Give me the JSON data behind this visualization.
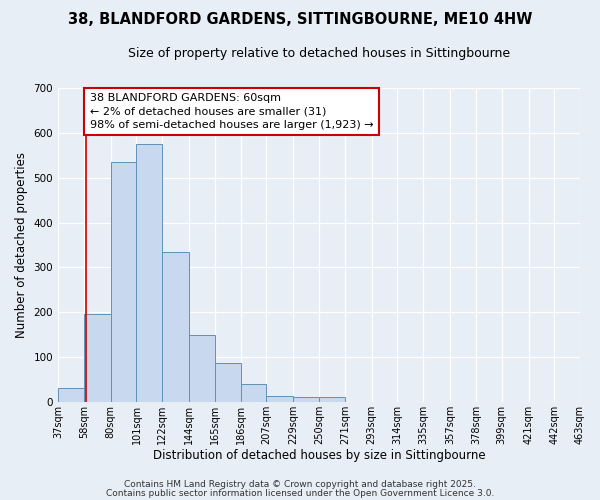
{
  "title_line1": "38, BLANDFORD GARDENS, SITTINGBOURNE, ME10 4HW",
  "title_line2": "Size of property relative to detached houses in Sittingbourne",
  "xlabel": "Distribution of detached houses by size in Sittingbourne",
  "ylabel": "Number of detached properties",
  "bin_edges": [
    37,
    58,
    80,
    101,
    122,
    144,
    165,
    186,
    207,
    229,
    250,
    271,
    293,
    314,
    335,
    357,
    378,
    399,
    421,
    442,
    463
  ],
  "counts": [
    30,
    195,
    535,
    575,
    335,
    148,
    87,
    40,
    13,
    10,
    10,
    0,
    0,
    0,
    0,
    0,
    0,
    0,
    0,
    0
  ],
  "bar_color": "#c8d8ee",
  "bar_edge_color": "#6090b8",
  "property_line_x": 60,
  "property_line_color": "#cc0000",
  "annotation_text": "38 BLANDFORD GARDENS: 60sqm\n← 2% of detached houses are smaller (31)\n98% of semi-detached houses are larger (1,923) →",
  "annotation_box_color": "#ffffff",
  "annotation_box_edge_color": "#cc0000",
  "ylim": [
    0,
    700
  ],
  "xlim": [
    37,
    463
  ],
  "background_color": "#e8eef5",
  "grid_color": "#ffffff",
  "footer_line1": "Contains HM Land Registry data © Crown copyright and database right 2025.",
  "footer_line2": "Contains public sector information licensed under the Open Government Licence 3.0.",
  "tick_labels": [
    "37sqm",
    "58sqm",
    "80sqm",
    "101sqm",
    "122sqm",
    "144sqm",
    "165sqm",
    "186sqm",
    "207sqm",
    "229sqm",
    "250sqm",
    "271sqm",
    "293sqm",
    "314sqm",
    "335sqm",
    "357sqm",
    "378sqm",
    "399sqm",
    "421sqm",
    "442sqm",
    "463sqm"
  ],
  "title_fontsize": 10.5,
  "subtitle_fontsize": 9,
  "axis_label_fontsize": 8.5,
  "tick_fontsize": 7,
  "annotation_fontsize": 8,
  "footer_fontsize": 6.5
}
